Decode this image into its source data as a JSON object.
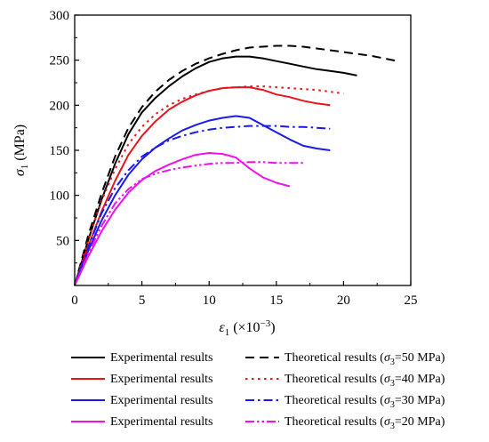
{
  "chart_data": {
    "type": "line",
    "xlabel": "ε1 (×10−3)",
    "xlabel_parts": {
      "symbol": "ε",
      "sub": "1",
      "unit_open": " (×10",
      "sup": "−3",
      "unit_close": ")"
    },
    "ylabel": "σ1 (MPa)",
    "ylabel_parts": {
      "symbol": "σ",
      "sub": "1",
      "unit": " (MPa)"
    },
    "xlim": [
      0,
      25
    ],
    "ylim": [
      0,
      300
    ],
    "xticks": [
      "0",
      "5",
      "10",
      "15",
      "20",
      "25"
    ],
    "yticks": [
      "50",
      "100",
      "150",
      "200",
      "250",
      "300"
    ],
    "grid": false,
    "legend_position": "bottom",
    "series": [
      {
        "name": "Experimental results",
        "color": "#000000",
        "dash": "solid",
        "group": "σ3=50 MPa",
        "x": [
          0,
          1,
          2,
          3,
          4,
          5,
          6,
          7,
          8,
          9,
          10,
          11,
          12,
          13,
          14,
          15,
          16,
          17,
          18,
          19,
          20,
          21
        ],
        "y": [
          0,
          50,
          95,
          135,
          168,
          192,
          208,
          221,
          232,
          241,
          248,
          252,
          254,
          254,
          252,
          249,
          246,
          243,
          240,
          238,
          236,
          233
        ]
      },
      {
        "name": "Theoretical results (σ3=50 MPa)",
        "color": "#000000",
        "dash": "dash",
        "group": "σ3=50 MPa",
        "x": [
          0,
          1,
          2,
          3,
          4,
          5,
          6,
          7,
          8,
          9,
          10,
          11,
          12,
          13,
          14,
          15,
          16,
          17,
          18,
          19,
          20,
          21,
          22,
          23,
          24
        ],
        "y": [
          0,
          55,
          102,
          143,
          175,
          198,
          215,
          228,
          238,
          246,
          252,
          257,
          261,
          264,
          265,
          266,
          266,
          265,
          263,
          261,
          259,
          257,
          255,
          252,
          249
        ]
      },
      {
        "name": "Experimental results",
        "color": "#e8141b",
        "dash": "solid",
        "group": "σ3=40 MPa",
        "x": [
          0,
          1,
          2,
          3,
          4,
          5,
          6,
          7,
          8,
          9,
          10,
          11,
          12,
          13,
          14,
          15,
          16,
          17,
          18,
          19
        ],
        "y": [
          0,
          43,
          82,
          116,
          145,
          166,
          182,
          195,
          204,
          211,
          216,
          219,
          220,
          220,
          217,
          212,
          209,
          205,
          202,
          200
        ]
      },
      {
        "name": "Theoretical results (σ3=40 MPa)",
        "color": "#e8141b",
        "dash": "dot",
        "group": "σ3=40 MPa",
        "x": [
          0,
          1,
          2,
          3,
          4,
          5,
          6,
          7,
          8,
          9,
          10,
          11,
          12,
          13,
          14,
          15,
          16,
          17,
          18,
          19,
          20
        ],
        "y": [
          0,
          50,
          94,
          129,
          157,
          176,
          190,
          200,
          207,
          212,
          216,
          219,
          220,
          221,
          221,
          220,
          219,
          218,
          217,
          215,
          213
        ]
      },
      {
        "name": "Experimental results",
        "color": "#1a1aee",
        "dash": "solid",
        "group": "σ3=30 MPa",
        "x": [
          0,
          1,
          2,
          3,
          4,
          5,
          6,
          7,
          8,
          9,
          10,
          11,
          12,
          13,
          14,
          15,
          16,
          17,
          18,
          19
        ],
        "y": [
          0,
          38,
          72,
          100,
          123,
          140,
          153,
          163,
          172,
          178,
          183,
          186,
          188,
          186,
          178,
          170,
          162,
          155,
          152,
          150
        ]
      },
      {
        "name": "Theoretical results (σ3=30 MPa)",
        "color": "#1a1aee",
        "dash": "dashdot",
        "group": "σ3=30 MPa",
        "x": [
          0,
          1,
          2,
          3,
          4,
          5,
          6,
          7,
          8,
          9,
          10,
          11,
          12,
          13,
          14,
          15,
          16,
          17,
          18,
          19
        ],
        "y": [
          0,
          42,
          80,
          108,
          128,
          143,
          153,
          161,
          166,
          170,
          173,
          175,
          176,
          177,
          177,
          177,
          176,
          176,
          175,
          174
        ]
      },
      {
        "name": "Experimental results",
        "color": "#ee11ee",
        "dash": "solid",
        "group": "σ3=20 MPa",
        "x": [
          0,
          1,
          2,
          3,
          4,
          5,
          6,
          7,
          8,
          9,
          10,
          11,
          12,
          13,
          14,
          15,
          16
        ],
        "y": [
          0,
          32,
          60,
          84,
          103,
          117,
          127,
          134,
          140,
          145,
          147,
          146,
          142,
          130,
          120,
          114,
          110
        ]
      },
      {
        "name": "Theoretical results (σ3=20 MPa)",
        "color": "#ee11ee",
        "dash": "dashdotdot",
        "group": "σ3=20 MPa",
        "x": [
          0,
          1,
          2,
          3,
          4,
          5,
          6,
          7,
          8,
          9,
          10,
          11,
          12,
          13,
          14,
          15,
          16,
          17
        ],
        "y": [
          0,
          35,
          66,
          91,
          107,
          118,
          124,
          128,
          131,
          133,
          135,
          136,
          136,
          137,
          137,
          136,
          136,
          136
        ]
      }
    ],
    "legend_rows": [
      {
        "exp_label": "Experimental results",
        "theo_prefix": "Theoretical results (",
        "theo_symbol": "σ",
        "theo_sub": "3",
        "theo_suffix": "=50 MPa)",
        "color": "#000000",
        "dash": "dash"
      },
      {
        "exp_label": "Experimental results",
        "theo_prefix": "Theoretical results (",
        "theo_symbol": "σ",
        "theo_sub": "3",
        "theo_suffix": "=40 MPa)",
        "color": "#e8141b",
        "dash": "dot"
      },
      {
        "exp_label": "Experimental results",
        "theo_prefix": "Theoretical results (",
        "theo_symbol": "σ",
        "theo_sub": "3",
        "theo_suffix": "=30 MPa)",
        "color": "#1a1aee",
        "dash": "dashdot"
      },
      {
        "exp_label": "Experimental results",
        "theo_prefix": "Theoretical results (",
        "theo_symbol": "σ",
        "theo_sub": "3",
        "theo_suffix": "=20 MPa)",
        "color": "#ee11ee",
        "dash": "dashdotdot"
      }
    ]
  }
}
